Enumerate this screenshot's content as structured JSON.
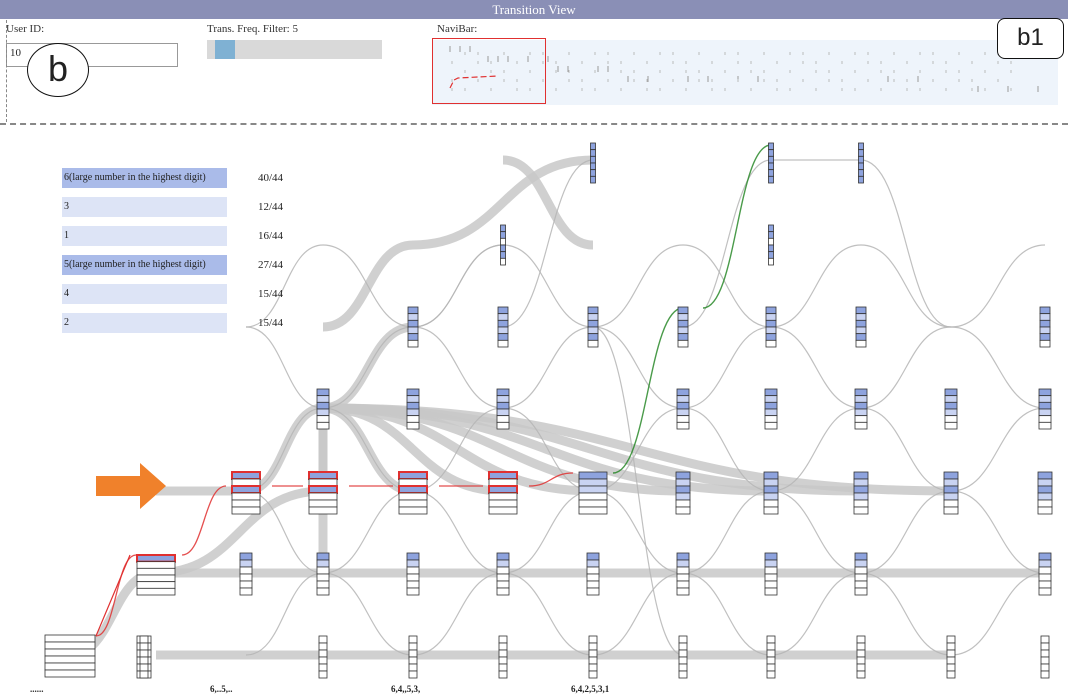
{
  "window": {
    "title": "Transition View"
  },
  "controls": {
    "user_id_label": "User ID:",
    "user_id_value": "10",
    "freq_filter_label": "Trans. Freq. Filter: 5",
    "freq_filter_value": 5,
    "navibar_label": "NaviBar:"
  },
  "annotations": {
    "b": "b",
    "b1": "b1"
  },
  "legend": [
    {
      "label": "6(large number in the highest digit)",
      "count": "40/44",
      "highlighted": true
    },
    {
      "label": "3",
      "count": "12/44",
      "highlighted": false
    },
    {
      "label": "1",
      "count": "16/44",
      "highlighted": false
    },
    {
      "label": "5(large number in the highest digit)",
      "count": "27/44",
      "highlighted": true
    },
    {
      "label": "4",
      "count": "15/44",
      "highlighted": false
    },
    {
      "label": "2",
      "count": "15/44",
      "highlighted": false
    }
  ],
  "sequence_labels": [
    "......",
    "6,..5,..",
    "6,4,,5,3,",
    "6,4,2,5,3,1"
  ],
  "colors": {
    "title_bar": "#8a8fb6",
    "node_fill": "#8ea3de",
    "highlight_path": "#e03030",
    "selected_path": "#2a8a2a",
    "flow": "#c8c8c8"
  }
}
